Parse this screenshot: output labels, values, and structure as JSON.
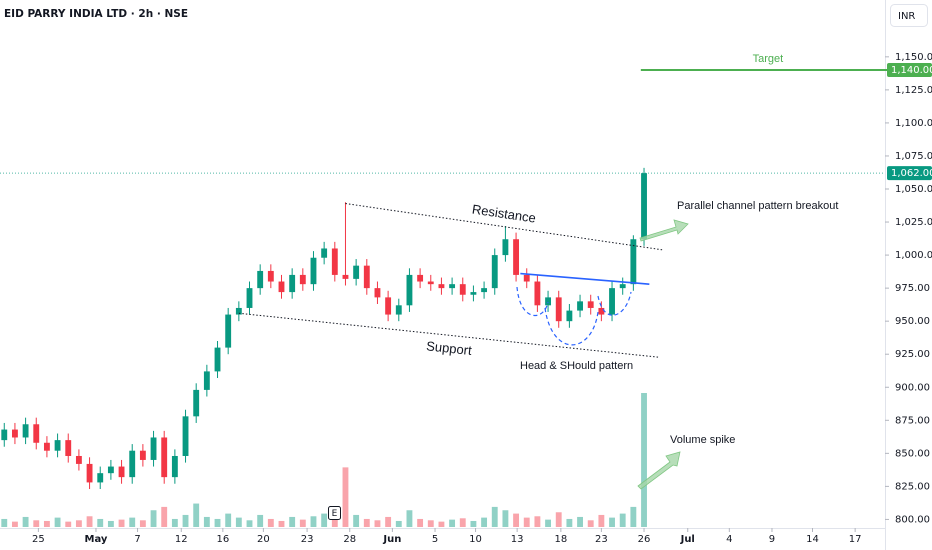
{
  "chart_data": {
    "type": "candlestick",
    "title": "EID PARRY INDIA LTD · 2h · NSE",
    "currency": "INR",
    "up_color": "#089981",
    "down_color": "#f23645",
    "grid": false,
    "x": [
      0,
      1,
      2,
      3,
      4,
      5,
      6,
      7,
      8,
      9,
      10,
      11,
      12,
      13,
      14,
      15,
      16,
      17,
      18,
      19,
      20,
      21,
      22,
      23,
      24,
      25,
      26,
      27,
      28,
      29,
      30,
      31,
      32,
      33,
      34,
      35,
      36,
      37,
      38,
      39,
      40,
      41,
      42,
      43,
      44,
      45,
      46,
      47,
      48,
      49,
      50,
      51,
      52,
      53,
      54,
      55,
      56,
      57,
      58,
      59,
      60
    ],
    "open": [
      860,
      868,
      862,
      872,
      858,
      852,
      860,
      848,
      842,
      828,
      835,
      840,
      832,
      852,
      845,
      862,
      832,
      848,
      878,
      898,
      912,
      930,
      955,
      960,
      975,
      988,
      980,
      972,
      985,
      978,
      998,
      1005,
      985,
      982,
      992,
      975,
      968,
      955,
      962,
      985,
      980,
      978,
      975,
      978,
      970,
      972,
      975,
      1000,
      1012,
      985,
      980,
      962,
      968,
      950,
      958,
      965,
      960,
      955,
      975,
      978,
      1012
    ],
    "high": [
      873,
      873,
      877,
      877,
      863,
      865,
      865,
      853,
      847,
      840,
      845,
      845,
      857,
      857,
      867,
      867,
      853,
      883,
      903,
      917,
      935,
      960,
      965,
      980,
      993,
      993,
      985,
      990,
      990,
      1003,
      1010,
      1010,
      1040,
      997,
      997,
      980,
      973,
      967,
      990,
      990,
      985,
      983,
      983,
      983,
      977,
      980,
      1005,
      1022,
      1017,
      990,
      985,
      973,
      973,
      963,
      970,
      970,
      965,
      980,
      983,
      1015,
      1066
    ],
    "low": [
      855,
      857,
      857,
      853,
      847,
      847,
      843,
      837,
      823,
      823,
      830,
      827,
      827,
      840,
      840,
      827,
      827,
      843,
      873,
      893,
      907,
      925,
      950,
      955,
      970,
      975,
      967,
      967,
      973,
      973,
      993,
      980,
      977,
      977,
      970,
      963,
      950,
      950,
      957,
      975,
      973,
      970,
      970,
      965,
      965,
      967,
      970,
      995,
      980,
      975,
      957,
      957,
      945,
      945,
      953,
      955,
      950,
      950,
      970,
      973,
      1007
    ],
    "close": [
      868,
      862,
      872,
      858,
      852,
      860,
      848,
      842,
      828,
      835,
      840,
      832,
      852,
      845,
      862,
      832,
      848,
      878,
      898,
      912,
      930,
      955,
      960,
      975,
      988,
      980,
      972,
      985,
      978,
      998,
      1005,
      985,
      982,
      992,
      975,
      968,
      955,
      962,
      985,
      980,
      978,
      975,
      978,
      970,
      972,
      975,
      1000,
      1012,
      985,
      980,
      962,
      968,
      950,
      958,
      965,
      960,
      955,
      975,
      978,
      1012,
      1062
    ],
    "volume": [
      12,
      8,
      15,
      10,
      9,
      14,
      8,
      10,
      16,
      12,
      9,
      11,
      14,
      10,
      25,
      30,
      12,
      18,
      35,
      15,
      12,
      20,
      14,
      10,
      18,
      12,
      9,
      15,
      11,
      16,
      20,
      14,
      89,
      18,
      12,
      10,
      15,
      9,
      25,
      12,
      10,
      8,
      11,
      13,
      9,
      14,
      30,
      25,
      20,
      14,
      16,
      11,
      22,
      12,
      15,
      10,
      18,
      14,
      20,
      30,
      200
    ],
    "vlim": [
      0,
      200
    ],
    "xlim": [
      -0.4,
      82.6
    ],
    "ylim": [
      792,
      1193
    ],
    "xticks": [
      {
        "value": 3.2,
        "label": "25"
      },
      {
        "value": 8.6,
        "label": "May"
      },
      {
        "value": 12.5,
        "label": "7"
      },
      {
        "value": 16.6,
        "label": "12"
      },
      {
        "value": 20.5,
        "label": "16"
      },
      {
        "value": 24.3,
        "label": "20"
      },
      {
        "value": 28.4,
        "label": "23"
      },
      {
        "value": 32.4,
        "label": "28"
      },
      {
        "value": 36.4,
        "label": "Jun"
      },
      {
        "value": 40.4,
        "label": "5"
      },
      {
        "value": 44.2,
        "label": "10"
      },
      {
        "value": 48.1,
        "label": "13"
      },
      {
        "value": 52.2,
        "label": "18"
      },
      {
        "value": 56.0,
        "label": "23"
      },
      {
        "value": 60.0,
        "label": "26"
      },
      {
        "value": 64.1,
        "label": "Jul"
      },
      {
        "value": 68.0,
        "label": "4"
      },
      {
        "value": 72.0,
        "label": "9"
      },
      {
        "value": 75.8,
        "label": "14"
      },
      {
        "value": 79.8,
        "label": "17"
      }
    ],
    "yticks": [
      {
        "value": 800,
        "label": "800.00"
      },
      {
        "value": 825,
        "label": "825.00"
      },
      {
        "value": 850,
        "label": "850.00"
      },
      {
        "value": 875,
        "label": "875.00"
      },
      {
        "value": 900,
        "label": "900.00"
      },
      {
        "value": 925,
        "label": "925.00"
      },
      {
        "value": 950,
        "label": "950.00"
      },
      {
        "value": 975,
        "label": "975.00"
      },
      {
        "value": 1000,
        "label": "1,000.00"
      },
      {
        "value": 1025,
        "label": "1,025.00"
      },
      {
        "value": 1050,
        "label": "1,050.00"
      },
      {
        "value": 1075,
        "label": "1,075.00"
      },
      {
        "value": 1100,
        "label": "1,100.00"
      },
      {
        "value": 1125,
        "label": "1,125.00"
      },
      {
        "value": 1150,
        "label": "1,150.00"
      }
    ],
    "last_price": {
      "value": 1062,
      "label": "1,062.00",
      "color": "#089981"
    },
    "target": {
      "text": "Target",
      "value": 1140,
      "label": "1,140.00",
      "x": 59.7,
      "color": "#4caf50"
    },
    "trendlines": [
      {
        "name": "Resistance",
        "x": [
          32,
          61.7
        ],
        "y": [
          1039,
          1004
        ]
      },
      {
        "name": "Support",
        "x": [
          22,
          61.4
        ],
        "y": [
          956,
          922.7
        ]
      }
    ],
    "neckline": {
      "x": [
        48.4,
        60.5
      ],
      "y": [
        986,
        978
      ],
      "color": "#2962ff"
    },
    "notes": [
      "Parallel channel pattern breakout",
      "Head & SHould pattern",
      "Volume spike"
    ],
    "earnings_marker": "E"
  }
}
